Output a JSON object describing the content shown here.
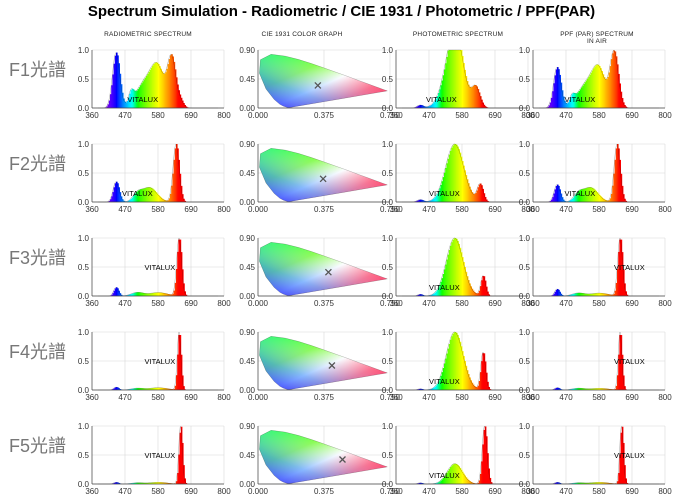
{
  "title": "Spectrum Simulation - Radiometric / CIE 1931 / Photometric / PPF(PAR)",
  "columns": [
    {
      "label": "RADIOMETRIC SPECTRUM"
    },
    {
      "label": "CIE 1931 COLOR GRAPH"
    },
    {
      "label": "PHOTOMETRIC SPECTRUM"
    },
    {
      "label": "PPF (PAR) SPECTRUM IN AIR"
    }
  ],
  "rows": [
    "F1光譜",
    "F2光譜",
    "F3光譜",
    "F4光譜",
    "F5光譜"
  ],
  "chart_data": {
    "type": "area",
    "spectrum_axis": {
      "x_ticks": [
        360,
        470,
        580,
        690,
        800
      ],
      "y_ticks": [
        "1.0",
        "0.5",
        "0.0"
      ],
      "xlim": [
        360,
        800
      ],
      "ylim": [
        0,
        1
      ]
    },
    "cie_axis": {
      "x_ticks": [
        "0.000",
        "0.375",
        "0.750"
      ],
      "y_ticks": [
        "0.90",
        "0.45",
        "0.00"
      ]
    },
    "annotation": "VITALUX",
    "panels": [
      {
        "row": "F1光譜",
        "radiometric": {
          "peaks": [
            [
              440,
              0.95,
              12
            ],
            [
              490,
              0.18,
              8
            ],
            [
              545,
              0.5,
              35
            ],
            [
              580,
              0.45,
              20
            ],
            [
              625,
              0.85,
              14
            ],
            [
              655,
              0.1,
              10
            ]
          ]
        },
        "cie_point": [
          0.34,
          0.35
        ],
        "photometric": {
          "peaks": [
            [
              440,
              0.05,
              10
            ],
            [
              540,
              0.5,
              30
            ],
            [
              560,
              0.95,
              25
            ],
            [
              625,
              0.35,
              14
            ]
          ]
        },
        "ppf": {
          "peaks": [
            [
              440,
              0.7,
              12
            ],
            [
              490,
              0.12,
              8
            ],
            [
              545,
              0.45,
              35
            ],
            [
              580,
              0.45,
              20
            ],
            [
              630,
              0.95,
              14
            ]
          ]
        }
      },
      {
        "row": "F2光譜",
        "radiometric": {
          "peaks": [
            [
              440,
              0.35,
              10
            ],
            [
              510,
              0.12,
              15
            ],
            [
              550,
              0.25,
              25
            ],
            [
              640,
              1.0,
              10
            ]
          ]
        },
        "cie_point": [
          0.37,
          0.36
        ],
        "photometric": {
          "peaks": [
            [
              440,
              0.04,
              10
            ],
            [
              555,
              1.0,
              30
            ],
            [
              640,
              0.3,
              10
            ]
          ]
        },
        "ppf": {
          "peaks": [
            [
              440,
              0.3,
              10
            ],
            [
              510,
              0.12,
              15
            ],
            [
              550,
              0.25,
              25
            ],
            [
              640,
              1.0,
              10
            ]
          ]
        }
      },
      {
        "row": "F3光譜",
        "radiometric": {
          "peaks": [
            [
              440,
              0.15,
              8
            ],
            [
              510,
              0.06,
              20
            ],
            [
              580,
              0.06,
              30
            ],
            [
              650,
              1.0,
              8
            ]
          ]
        },
        "cie_point": [
          0.4,
          0.37
        ],
        "photometric": {
          "peaks": [
            [
              440,
              0.03,
              8
            ],
            [
              555,
              1.0,
              28
            ],
            [
              650,
              0.35,
              8
            ]
          ]
        },
        "ppf": {
          "peaks": [
            [
              440,
              0.12,
              8
            ],
            [
              510,
              0.05,
              20
            ],
            [
              580,
              0.05,
              30
            ],
            [
              650,
              1.0,
              8
            ]
          ]
        }
      },
      {
        "row": "F4光譜",
        "radiometric": {
          "peaks": [
            [
              440,
              0.05,
              8
            ],
            [
              510,
              0.03,
              20
            ],
            [
              580,
              0.04,
              30
            ],
            [
              650,
              1.0,
              6
            ]
          ]
        },
        "cie_point": [
          0.42,
          0.38
        ],
        "photometric": {
          "peaks": [
            [
              440,
              0.02,
              8
            ],
            [
              555,
              1.0,
              28
            ],
            [
              650,
              0.65,
              8
            ]
          ]
        },
        "ppf": {
          "peaks": [
            [
              440,
              0.04,
              8
            ],
            [
              510,
              0.03,
              20
            ],
            [
              580,
              0.03,
              30
            ],
            [
              650,
              1.0,
              6
            ]
          ]
        }
      },
      {
        "row": "F5光譜",
        "radiometric": {
          "peaks": [
            [
              440,
              0.03,
              8
            ],
            [
              510,
              0.02,
              20
            ],
            [
              580,
              0.03,
              30
            ],
            [
              655,
              1.0,
              6
            ]
          ]
        },
        "cie_point": [
          0.48,
          0.38
        ],
        "photometric": {
          "peaks": [
            [
              440,
              0.02,
              8
            ],
            [
              555,
              0.35,
              25
            ],
            [
              655,
              1.0,
              8
            ]
          ]
        },
        "ppf": {
          "peaks": [
            [
              440,
              0.03,
              8
            ],
            [
              510,
              0.02,
              20
            ],
            [
              580,
              0.03,
              30
            ],
            [
              655,
              1.0,
              6
            ]
          ]
        }
      }
    ]
  }
}
